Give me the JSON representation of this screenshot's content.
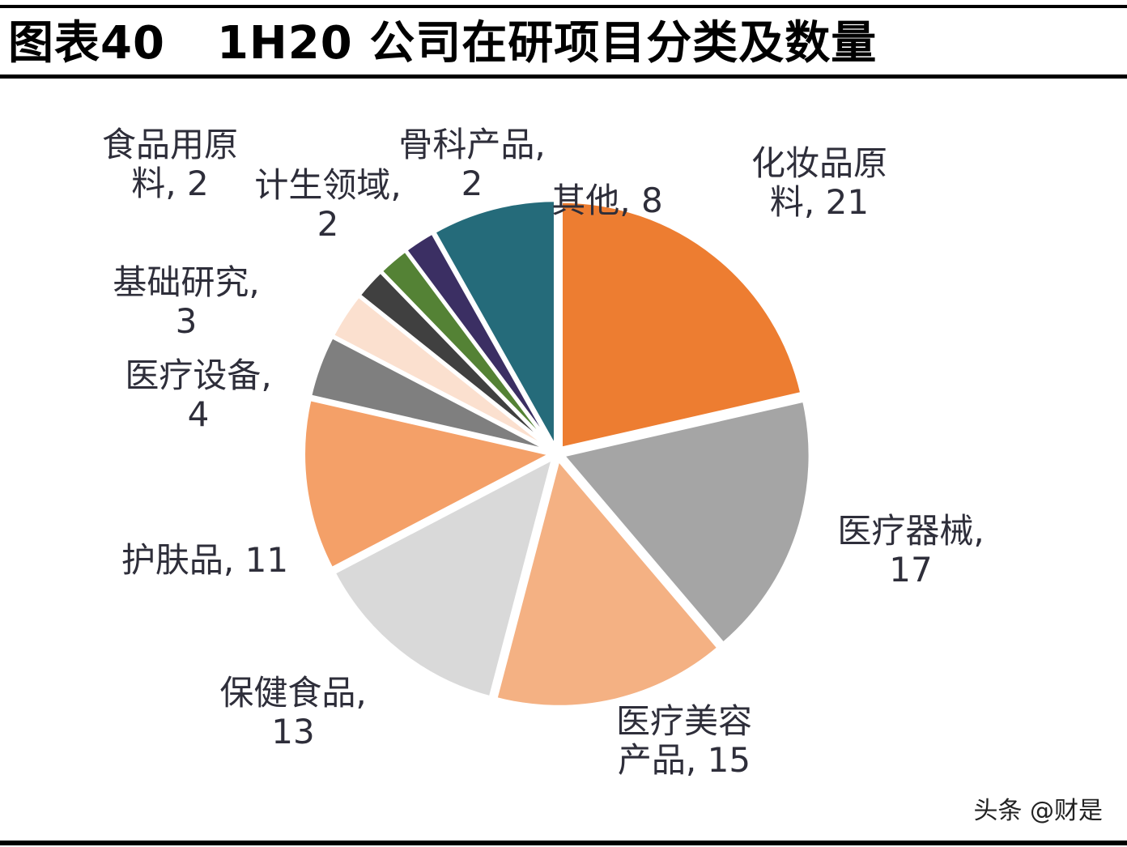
{
  "header": {
    "figure_number": "图表40",
    "title": "1H20 公司在研项目分类及数量"
  },
  "watermark": "头条 @财是",
  "chart_data": {
    "type": "pie",
    "title": "1H20 公司在研项目分类及数量",
    "start_angle_deg": 0,
    "direction": "clockwise",
    "slices": [
      {
        "name": "化妆品原料",
        "value": 21,
        "color": "#ED7D31",
        "label_lines": [
          "化妆品原",
          "料, 21"
        ]
      },
      {
        "name": "医疗器械",
        "value": 17,
        "color": "#A5A5A5",
        "label_lines": [
          "医疗器械,",
          "17"
        ]
      },
      {
        "name": "医疗美容产品",
        "value": 15,
        "color": "#F4B183",
        "label_lines": [
          "医疗美容",
          "产品, 15"
        ]
      },
      {
        "name": "保健食品",
        "value": 13,
        "color": "#D9D9D9",
        "label_lines": [
          "保健食品,",
          "13"
        ]
      },
      {
        "name": "护肤品",
        "value": 11,
        "color": "#F4A068",
        "label_lines": [
          "护肤品, 11"
        ]
      },
      {
        "name": "医疗设备",
        "value": 4,
        "color": "#7F7F7F",
        "label_lines": [
          "医疗设备,",
          "4"
        ]
      },
      {
        "name": "基础研究",
        "value": 3,
        "color": "#FBE0CF",
        "label_lines": [
          "基础研究,",
          "3"
        ]
      },
      {
        "name": "食品用原料",
        "value": 2,
        "color": "#404040",
        "label_lines": [
          "食品用原",
          "料, 2"
        ]
      },
      {
        "name": "计生领域",
        "value": 2,
        "color": "#548235",
        "label_lines": [
          "计生领域,",
          "2"
        ]
      },
      {
        "name": "骨科产品",
        "value": 2,
        "color": "#3B2F63",
        "label_lines": [
          "骨科产品,",
          "2"
        ]
      },
      {
        "name": "其他",
        "value": 8,
        "color": "#256B7A",
        "label_lines": [
          "其他, 8"
        ]
      }
    ]
  }
}
